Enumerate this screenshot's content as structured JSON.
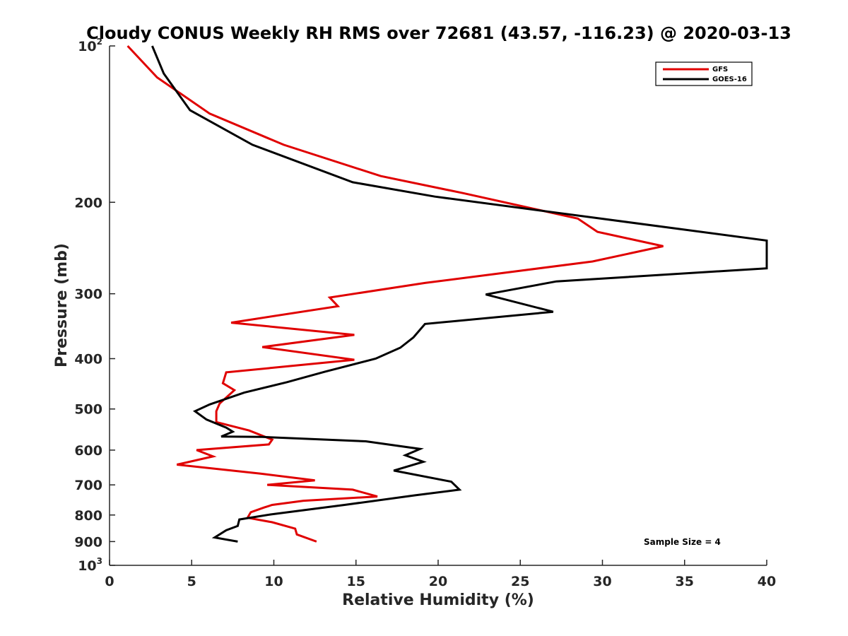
{
  "chart_data": {
    "type": "line",
    "title": "Cloudy CONUS Weekly RH RMS over 72681 (43.57, -116.23) @ 2020-03-13",
    "xlabel": "Relative Humidity (%)",
    "ylabel": "Pressure (mb)",
    "xlim": [
      0,
      40
    ],
    "ylim": [
      100,
      1000
    ],
    "y_scale": "log",
    "y_reversed": true,
    "grid": false,
    "legend_position": "top-right",
    "x_ticks": [
      0,
      5,
      10,
      15,
      20,
      25,
      30,
      35,
      40
    ],
    "x_tick_labels": [
      "0",
      "5",
      "10",
      "15",
      "20",
      "25",
      "30",
      "35",
      "40"
    ],
    "y_ticks": [
      {
        "value": 100,
        "base": "10",
        "exp": "2",
        "label": ""
      },
      {
        "value": 200,
        "base": "",
        "exp": "",
        "label": "200"
      },
      {
        "value": 300,
        "base": "",
        "exp": "",
        "label": "300"
      },
      {
        "value": 400,
        "base": "",
        "exp": "",
        "label": "400"
      },
      {
        "value": 500,
        "base": "",
        "exp": "",
        "label": "500"
      },
      {
        "value": 600,
        "base": "",
        "exp": "",
        "label": "600"
      },
      {
        "value": 700,
        "base": "",
        "exp": "",
        "label": "700"
      },
      {
        "value": 800,
        "base": "",
        "exp": "",
        "label": "800"
      },
      {
        "value": 900,
        "base": "",
        "exp": "",
        "label": "900"
      },
      {
        "value": 1000,
        "base": "10",
        "exp": "3",
        "label": ""
      }
    ],
    "series": [
      {
        "name": "GFS",
        "color": "#e00000",
        "x": [
          1.1,
          2.9,
          6.1,
          10.6,
          16.5,
          21.5,
          28.5,
          29.7,
          33.7,
          29.4,
          19.2,
          13.4,
          13.9,
          7.4,
          14.9,
          9.3,
          14.9,
          7.1,
          6.9,
          7.6,
          6.7,
          6.5,
          6.5,
          8.5,
          9.9,
          9.7,
          5.3,
          6.3,
          4.1,
          9.2,
          12.5,
          9.6,
          14.8,
          16.3,
          11.8,
          9.9,
          9.4,
          8.6,
          8.4,
          9.9,
          11.3,
          11.4,
          12.6
        ],
        "y": [
          100,
          115,
          135,
          155,
          178,
          192,
          215,
          228,
          243,
          260,
          286,
          305,
          317,
          341,
          360,
          380,
          402,
          425,
          446,
          460,
          488,
          505,
          530,
          550,
          573,
          585,
          600,
          617,
          640,
          666,
          686,
          700,
          715,
          737,
          751,
          765,
          774,
          790,
          810,
          826,
          850,
          872,
          900
        ],
        "line_width": 3
      },
      {
        "name": "GOES-16",
        "color": "#000000",
        "x": [
          2.6,
          3.3,
          4.9,
          8.7,
          14.8,
          19.8,
          26.5,
          40,
          40,
          27.2,
          22.9,
          27.0,
          19.2,
          18.5,
          17.7,
          16.2,
          13.1,
          10.8,
          8.2,
          6.1,
          5.2,
          5.9,
          7.1,
          7.5,
          6.8,
          9.3,
          15.6,
          18.9,
          18.0,
          19.1,
          17.3,
          20.8,
          21.3,
          18.6,
          14.3,
          9.8,
          7.9,
          7.8,
          7.1,
          6.4,
          7.8
        ],
        "y": [
          100,
          113,
          133,
          155,
          183,
          195,
          208,
          237,
          268,
          284,
          301,
          325,
          343,
          364,
          381,
          400,
          424,
          444,
          465,
          490,
          505,
          524,
          543,
          553,
          565,
          566,
          577,
          597,
          614,
          632,
          657,
          690,
          715,
          733,
          765,
          798,
          816,
          840,
          856,
          884,
          900
        ],
        "line_width": 3
      }
    ],
    "legend": {
      "entries": [
        "GFS",
        "GOES-16"
      ]
    },
    "annotation": "Sample Size = 4"
  }
}
